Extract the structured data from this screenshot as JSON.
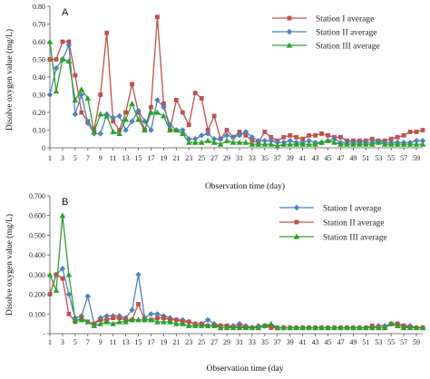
{
  "chart_data": [
    {
      "type": "line",
      "panel_label": "A",
      "xlabel": "Observation time (day)",
      "ylabel": "Disolve oxygen value (mg/L)",
      "ylim": [
        0,
        0.8
      ],
      "yticks": [
        "0",
        "0.10",
        "0.20",
        "0.30",
        "0.40",
        "0.50",
        "0.60",
        "0.70",
        "0.80"
      ],
      "xlim": [
        1,
        60
      ],
      "xticks": [
        "1",
        "3",
        "5",
        "7",
        "9",
        "11",
        "13",
        "15",
        "17",
        "19",
        "21",
        "23",
        "25",
        "27",
        "29",
        "31",
        "33",
        "35",
        "37",
        "39",
        "41",
        "43",
        "45",
        "47",
        "49",
        "51",
        "53",
        "55",
        "57",
        "59"
      ],
      "legend_position": "top-right",
      "series": [
        {
          "name": "Station I average",
          "color": "#c0504d",
          "marker": "square",
          "values": [
            0.5,
            0.5,
            0.6,
            0.6,
            0.41,
            0.2,
            0.15,
            0.1,
            0.3,
            0.65,
            0.15,
            0.1,
            0.2,
            0.36,
            0.2,
            0.1,
            0.23,
            0.74,
            0.25,
            0.1,
            0.27,
            0.2,
            0.13,
            0.31,
            0.28,
            0.1,
            0.18,
            0.05,
            0.1,
            0.06,
            0.09,
            0.07,
            0.04,
            0.03,
            0.09,
            0.06,
            0.04,
            0.06,
            0.07,
            0.06,
            0.05,
            0.07,
            0.07,
            0.08,
            0.07,
            0.06,
            0.06,
            0.04,
            0.04,
            0.04,
            0.04,
            0.05,
            0.04,
            0.04,
            0.05,
            0.06,
            0.07,
            0.09,
            0.09,
            0.1
          ]
        },
        {
          "name": "Station II average",
          "color": "#4f81bd",
          "marker": "diamond",
          "values": [
            0.3,
            0.45,
            0.5,
            0.58,
            0.19,
            0.3,
            0.14,
            0.08,
            0.08,
            0.19,
            0.17,
            0.18,
            0.1,
            0.15,
            0.21,
            0.15,
            0.1,
            0.27,
            0.23,
            0.13,
            0.1,
            0.1,
            0.05,
            0.05,
            0.07,
            0.08,
            0.05,
            0.05,
            0.07,
            0.06,
            0.07,
            0.09,
            0.06,
            0.04,
            0.04,
            0.04,
            0.03,
            0.03,
            0.04,
            0.03,
            0.03,
            0.04,
            0.03,
            0.03,
            0.04,
            0.05,
            0.03,
            0.03,
            0.03,
            0.03,
            0.03,
            0.03,
            0.04,
            0.03,
            0.03,
            0.03,
            0.03,
            0.03,
            0.04,
            0.04
          ]
        },
        {
          "name": "Station III average",
          "color": "#2ca02c",
          "marker": "triangle",
          "values": [
            0.6,
            0.32,
            0.5,
            0.49,
            0.27,
            0.33,
            0.28,
            0.09,
            0.19,
            0.18,
            0.09,
            0.08,
            0.16,
            0.25,
            0.16,
            0.1,
            0.2,
            0.2,
            0.18,
            0.1,
            0.1,
            0.08,
            0.03,
            0.03,
            0.03,
            0.04,
            0.03,
            0.02,
            0.04,
            0.03,
            0.03,
            0.03,
            0.02,
            0.02,
            0.02,
            0.02,
            0.01,
            0.02,
            0.02,
            0.02,
            0.02,
            0.02,
            0.02,
            0.03,
            0.04,
            0.03,
            0.02,
            0.02,
            0.02,
            0.02,
            0.02,
            0.02,
            0.03,
            0.02,
            0.02,
            0.02,
            0.02,
            0.02,
            0.02,
            0.02
          ]
        }
      ]
    },
    {
      "type": "line",
      "panel_label": "B",
      "xlabel": "Observation time (day",
      "ylabel": "Disolve oxygen value (mg/L)",
      "ylim": [
        0,
        0.7
      ],
      "yticks": [
        "-",
        "0.100",
        "0.200",
        "0.300",
        "0.400",
        "0.500",
        "0.600",
        "0.700"
      ],
      "xlim": [
        1,
        60
      ],
      "xticks": [
        "1",
        "3",
        "5",
        "7",
        "9",
        "11",
        "13",
        "15",
        "17",
        "19",
        "21",
        "23",
        "25",
        "27",
        "29",
        "31",
        "33",
        "35",
        "37",
        "39",
        "41",
        "43",
        "45",
        "47",
        "49",
        "51",
        "53",
        "55",
        "57",
        "59"
      ],
      "legend_position": "top-right",
      "series": [
        {
          "name": "Station I average",
          "color": "#4f81bd",
          "marker": "diamond",
          "values": [
            0.2,
            0.3,
            0.33,
            0.2,
            0.08,
            0.09,
            0.19,
            0.05,
            0.08,
            0.09,
            0.09,
            0.09,
            0.08,
            0.12,
            0.3,
            0.08,
            0.1,
            0.1,
            0.09,
            0.08,
            0.07,
            0.07,
            0.06,
            0.05,
            0.05,
            0.07,
            0.05,
            0.04,
            0.04,
            0.04,
            0.05,
            0.04,
            0.03,
            0.04,
            0.04,
            0.04,
            0.03,
            0.03,
            0.03,
            0.03,
            0.03,
            0.03,
            0.03,
            0.03,
            0.03,
            0.03,
            0.03,
            0.03,
            0.03,
            0.03,
            0.03,
            0.03,
            0.04,
            0.04,
            0.05,
            0.05,
            0.04,
            0.04,
            0.03,
            0.03
          ]
        },
        {
          "name": "Station II average",
          "color": "#c0504d",
          "marker": "square",
          "values": [
            0.2,
            0.3,
            0.28,
            0.1,
            0.06,
            0.08,
            0.06,
            0.05,
            0.07,
            0.07,
            0.08,
            0.08,
            0.07,
            0.07,
            0.15,
            0.07,
            0.07,
            0.08,
            0.08,
            0.07,
            0.07,
            0.06,
            0.06,
            0.05,
            0.05,
            0.04,
            0.04,
            0.04,
            0.04,
            0.03,
            0.04,
            0.03,
            0.03,
            0.03,
            0.04,
            0.03,
            0.03,
            0.03,
            0.03,
            0.03,
            0.03,
            0.03,
            0.03,
            0.03,
            0.03,
            0.03,
            0.03,
            0.03,
            0.03,
            0.03,
            0.03,
            0.04,
            0.03,
            0.03,
            0.05,
            0.05,
            0.04,
            0.03,
            0.03,
            0.03
          ]
        },
        {
          "name": "Station III average",
          "color": "#2ca02c",
          "marker": "triangle",
          "values": [
            0.3,
            0.22,
            0.6,
            0.3,
            0.07,
            0.07,
            0.06,
            0.04,
            0.05,
            0.06,
            0.05,
            0.06,
            0.06,
            0.07,
            0.07,
            0.07,
            0.07,
            0.06,
            0.06,
            0.06,
            0.05,
            0.05,
            0.04,
            0.04,
            0.04,
            0.04,
            0.04,
            0.03,
            0.03,
            0.03,
            0.03,
            0.03,
            0.03,
            0.03,
            0.04,
            0.05,
            0.03,
            0.03,
            0.03,
            0.03,
            0.03,
            0.03,
            0.03,
            0.03,
            0.03,
            0.03,
            0.03,
            0.03,
            0.03,
            0.03,
            0.03,
            0.03,
            0.03,
            0.03,
            0.05,
            0.04,
            0.03,
            0.03,
            0.03,
            0.03
          ]
        }
      ]
    }
  ]
}
